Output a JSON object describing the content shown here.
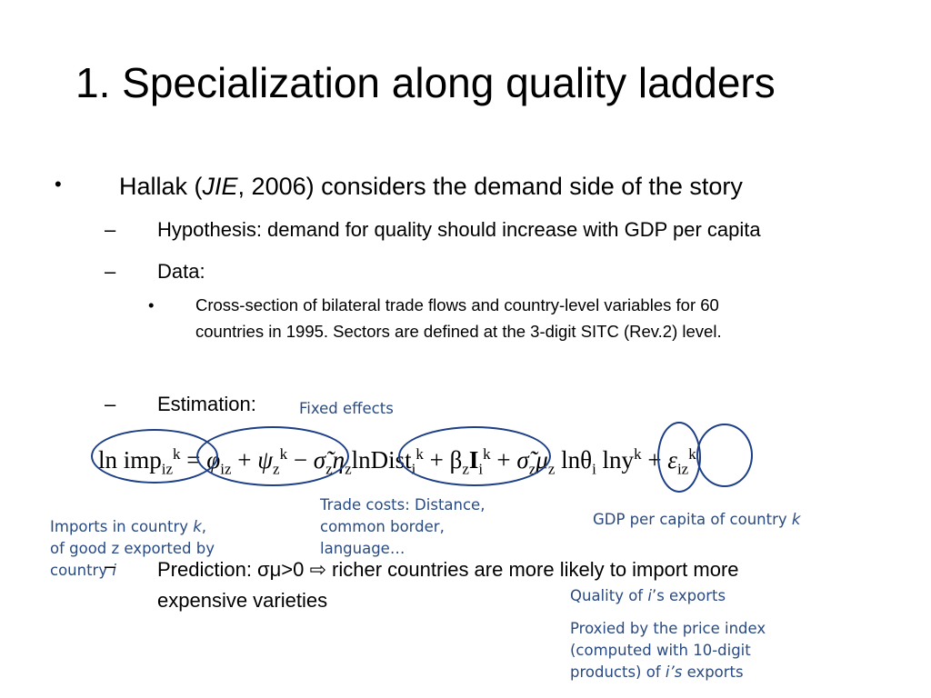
{
  "slide": {
    "title": "1. Specialization along quality ladders",
    "bullet": {
      "prefix": "Hallak (",
      "journal": "JIE",
      "suffix": ", 2006) considers the demand side of the story"
    },
    "dash": "–",
    "dot": "•",
    "hypothesis": "Hypothesis: demand for quality should increase with GDP per capita",
    "data_label": "Data:",
    "data_detail_line1": "Cross-section of bilateral trade flows and country-level variables for 60",
    "data_detail_line2": "countries in 1995. Sectors are defined at the 3-digit SITC (Rev.2) level.",
    "estimation_label": "Estimation:",
    "prediction_line1": "Prediction: σμ>0 ⇨ richer countries are more likely to import more",
    "prediction_line2": "expensive varieties"
  },
  "annotations": {
    "fixed_effects": "Fixed effects",
    "imports": {
      "line1_prefix": "Imports in country ",
      "line1_var": "k",
      "line1_suffix": ",",
      "line2": "of good z exported by",
      "line3_prefix": "country ",
      "line3_var": "i"
    },
    "trade_costs": {
      "line1": "Trade costs: Distance,",
      "line2": "common border,",
      "line3": "language…"
    },
    "gdp": {
      "prefix": "GDP per capita of country ",
      "var": "k"
    },
    "quality": {
      "prefix": "Quality of ",
      "var": "i",
      "suffix": "’s exports"
    },
    "proxy": {
      "line1": "Proxied by the price index",
      "line2": "(computed with 10-digit",
      "line3_prefix": "products) of ",
      "line3_var": "i’s",
      "line3_suffix": " exports"
    }
  },
  "equation": {
    "ln_imp": "ln imp",
    "sup_k": "k",
    "sub_iz": "iz",
    "eq": " = ",
    "phi": "φ",
    "plus": " + ",
    "psi": "ψ",
    "sub_z": "z",
    "minus": " − ",
    "sigma_eta": "σ̃",
    "eta": "η",
    "ln_dist": "lnDist",
    "sub_i": "i",
    "beta": "β",
    "I": "I",
    "mu": "μ",
    "ln_theta": "lnθ",
    "ln_y": "lny",
    "eps": "ε"
  },
  "colors": {
    "annotation_text": "#2a4a82",
    "oval_stroke": "#1d3f86"
  }
}
